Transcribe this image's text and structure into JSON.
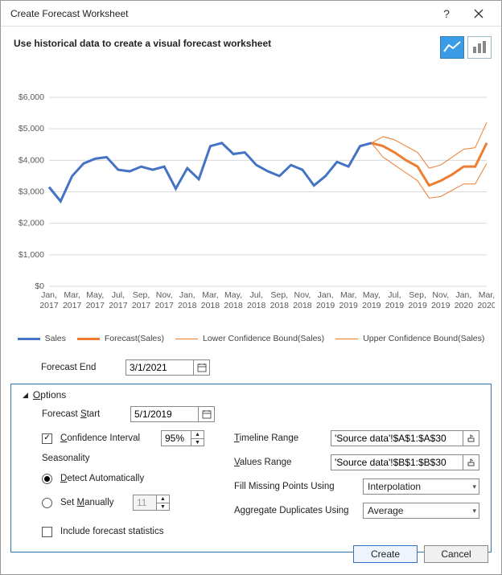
{
  "window": {
    "title": "Create Forecast Worksheet"
  },
  "subtitle": "Use historical data to create a visual forecast worksheet",
  "chart": {
    "type": "line",
    "background_color": "#ffffff",
    "grid_color": "#d9d9d9",
    "y_axis": {
      "min": 0,
      "max": 6000,
      "tick_step": 1000,
      "labels": [
        "$0",
        "$1,000",
        "$2,000",
        "$3,000",
        "$4,000",
        "$5,000",
        "$6,000"
      ]
    },
    "x_labels_top": [
      "Jan,",
      "Mar,",
      "May,",
      "Jul,",
      "Sep,",
      "Nov,",
      "Jan,",
      "Mar,",
      "May,",
      "Jul,",
      "Sep,",
      "Nov,",
      "Jan,",
      "Mar,",
      "May,",
      "Jul,",
      "Sep,",
      "Nov,",
      "Jan,",
      "Mar,"
    ],
    "x_labels_bottom": [
      "2017",
      "2017",
      "2017",
      "2017",
      "2017",
      "2017",
      "2018",
      "2018",
      "2018",
      "2018",
      "2018",
      "2018",
      "2019",
      "2019",
      "2019",
      "2019",
      "2019",
      "2019",
      "2020",
      "2020"
    ],
    "series": {
      "sales": {
        "label": "Sales",
        "color": "#4472c4",
        "width": 3,
        "values": [
          3150,
          2700,
          3500,
          3900,
          4050,
          4100,
          3700,
          3650,
          3800,
          3700,
          3800,
          3100,
          3750,
          3400,
          4450,
          4550,
          4200,
          4250,
          3850,
          3650,
          3500,
          3850,
          3700,
          3200,
          3500,
          3950,
          3800,
          4450,
          4550
        ]
      },
      "forecast": {
        "label": "Forecast(Sales)",
        "color": "#ed7d31",
        "width": 3,
        "values": [
          4550,
          4450,
          4250,
          4000,
          3800,
          3200,
          3350,
          3550,
          3800,
          3800,
          4550
        ],
        "start_index": 28
      },
      "lower": {
        "label": "Lower Confidence Bound(Sales)",
        "color": "#ed7d31",
        "width": 1,
        "values": [
          4550,
          4100,
          3850,
          3600,
          3350,
          2800,
          2850,
          3050,
          3250,
          3250,
          3900
        ],
        "start_index": 28
      },
      "upper": {
        "label": "Upper Confidence Bound(Sales)",
        "color": "#ed7d31",
        "width": 1,
        "values": [
          4550,
          4750,
          4650,
          4450,
          4250,
          3750,
          3850,
          4100,
          4350,
          4400,
          5200
        ],
        "start_index": 28
      }
    },
    "n_points": 39
  },
  "forecast_end": {
    "label": "Forecast End",
    "value": "3/1/2021"
  },
  "options": {
    "header": "Options",
    "forecast_start": {
      "label": "Forecast Start",
      "value": "5/1/2019"
    },
    "confidence": {
      "label": "Confidence Interval",
      "checked": true,
      "value": "95%"
    },
    "seasonality": {
      "header": "Seasonality",
      "auto_label": "Detect Automatically",
      "manual_label": "Set Manually",
      "mode": "auto",
      "manual_value": "11"
    },
    "include_stats": {
      "label": "Include forecast statistics",
      "checked": false
    },
    "timeline_range": {
      "label": "Timeline Range",
      "value": "'Source data'!$A$1:$A$30"
    },
    "values_range": {
      "label": "Values Range",
      "value": "'Source data'!$B$1:$B$30"
    },
    "fill_missing": {
      "label": "Fill Missing Points Using",
      "value": "Interpolation"
    },
    "aggregate": {
      "label": "Aggregate Duplicates Using",
      "value": "Average"
    }
  },
  "buttons": {
    "create": "Create",
    "cancel": "Cancel"
  },
  "accel": {
    "u_O": "O",
    "u_S": "S",
    "u_C": "C",
    "u_D": "D",
    "u_M": "M",
    "u_T": "T",
    "u_V": "V"
  }
}
